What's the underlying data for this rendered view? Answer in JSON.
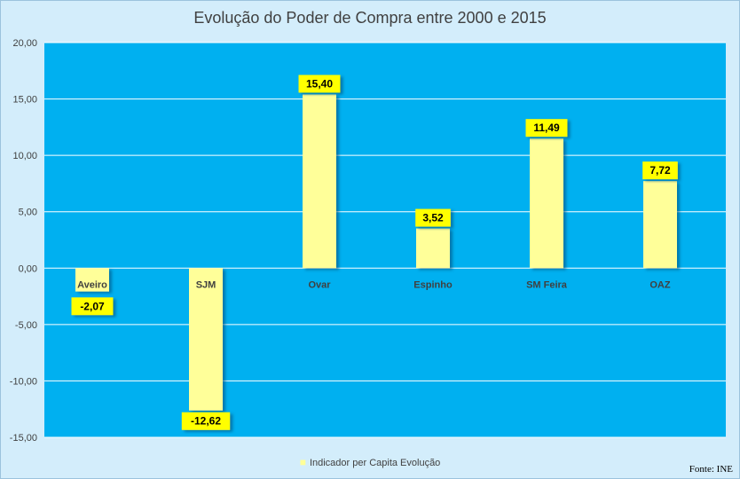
{
  "chart_data": {
    "type": "bar",
    "title": "Evolução do Poder de Compra entre 2000 e 2015",
    "categories": [
      "Aveiro",
      "SJM",
      "Ovar",
      "Espinho",
      "SM Feira",
      "OAZ"
    ],
    "series": [
      {
        "name": "Indicador per Capita  Evolução",
        "values": [
          -2.07,
          -12.62,
          15.4,
          3.52,
          11.49,
          7.72
        ],
        "labels": [
          "-2,07",
          "-12,62",
          "15,40",
          "3,52",
          "11,49",
          "7,72"
        ]
      }
    ],
    "ylim": [
      -15,
      20
    ],
    "yticks": [
      20,
      15,
      10,
      5,
      0,
      -5,
      -10,
      -15
    ],
    "ytick_labels": [
      "20,00",
      "15,00",
      "10,00",
      "5,00",
      "0,00",
      "-5,00",
      "-10,00",
      "-15,00"
    ],
    "grid": true,
    "legend_position": "bottom",
    "colors": {
      "plot_background": "#00b0f0",
      "bar_fill": "#ffff99",
      "data_label_background": "#ffff00",
      "gridline": "#ffffff",
      "chart_background": "#d3edfb"
    }
  },
  "source": "Fonte: INE"
}
